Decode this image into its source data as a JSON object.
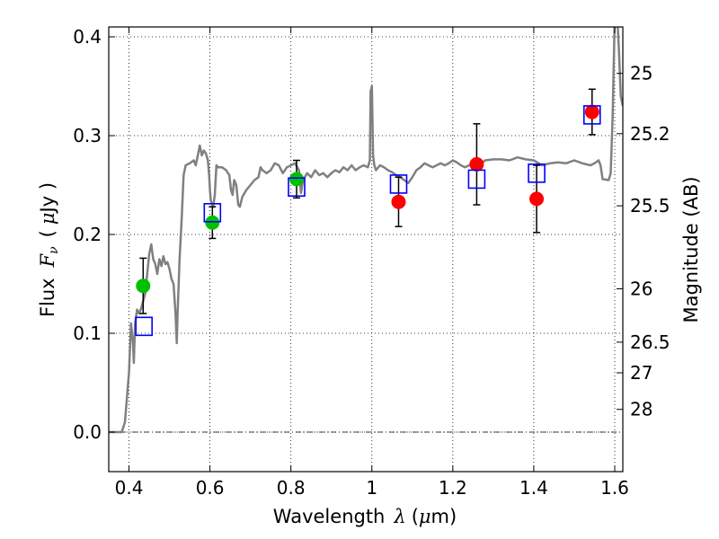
{
  "chart_data": {
    "type": "scatter",
    "title": "",
    "xlabel": {
      "prefix": "Wavelength",
      "symbol": "λ",
      "unit_open": "(",
      "unit_mu": "μ",
      "unit_rest": "m)"
    },
    "ylabel": {
      "prefix": "Flux",
      "symbol": "F",
      "sub": "ν",
      "unit_open": "(",
      "unit_mu": "μ",
      "unit_rest": "Jy )"
    },
    "y2label": "Magnitude (AB)",
    "xlim": [
      0.35,
      1.62
    ],
    "ylim": [
      -0.04,
      0.41
    ],
    "grid": true,
    "x_ticks": [
      0.4,
      0.6,
      0.8,
      1.0,
      1.2,
      1.4,
      1.6
    ],
    "x_tick_labels": [
      "0.4",
      "0.6",
      "0.8",
      "1",
      "1.2",
      "1.4",
      "1.6"
    ],
    "y_ticks": [
      0.0,
      0.1,
      0.2,
      0.3,
      0.4
    ],
    "y_tick_labels": [
      "0.0",
      "0.1",
      "0.2",
      "0.3",
      "0.4"
    ],
    "y2_ticks": [
      {
        "label": "25",
        "flux": 0.363
      },
      {
        "label": "25.2",
        "flux": 0.302
      },
      {
        "label": "25.5",
        "flux": 0.229
      },
      {
        "label": "26",
        "flux": 0.145
      },
      {
        "label": "26.5",
        "flux": 0.091
      },
      {
        "label": "27",
        "flux": 0.06
      },
      {
        "label": "28",
        "flux": 0.023
      }
    ],
    "series": [
      {
        "marker": "circle",
        "color": "#00c000",
        "points": [
          {
            "x": 0.435,
            "y": 0.148,
            "err": 0.028
          },
          {
            "x": 0.606,
            "y": 0.212,
            "err": 0.016
          },
          {
            "x": 0.814,
            "y": 0.256,
            "err": 0.019
          }
        ]
      },
      {
        "marker": "circle",
        "color": "#ff0000",
        "points": [
          {
            "x": 1.066,
            "y": 0.233,
            "err": 0.025
          },
          {
            "x": 1.259,
            "y": 0.271,
            "err": 0.041
          },
          {
            "x": 1.407,
            "y": 0.236,
            "err": 0.034
          },
          {
            "x": 1.544,
            "y": 0.324,
            "err": 0.023
          }
        ]
      },
      {
        "marker": "open-square",
        "color": "#0000ff",
        "points": [
          {
            "x": 0.437,
            "y": 0.107
          },
          {
            "x": 0.606,
            "y": 0.222
          },
          {
            "x": 0.814,
            "y": 0.248
          },
          {
            "x": 1.066,
            "y": 0.251
          },
          {
            "x": 1.259,
            "y": 0.256
          },
          {
            "x": 1.407,
            "y": 0.262
          },
          {
            "x": 1.544,
            "y": 0.321
          }
        ]
      }
    ],
    "model_spectrum": {
      "color": "#808080",
      "points": [
        [
          0.35,
          0.0
        ],
        [
          0.382,
          0.0
        ],
        [
          0.39,
          0.01
        ],
        [
          0.4,
          0.06
        ],
        [
          0.405,
          0.11
        ],
        [
          0.41,
          0.09
        ],
        [
          0.412,
          0.07
        ],
        [
          0.415,
          0.11
        ],
        [
          0.42,
          0.124
        ],
        [
          0.425,
          0.12
        ],
        [
          0.43,
          0.125
        ],
        [
          0.44,
          0.14
        ],
        [
          0.445,
          0.16
        ],
        [
          0.45,
          0.18
        ],
        [
          0.455,
          0.19
        ],
        [
          0.46,
          0.175
        ],
        [
          0.465,
          0.17
        ],
        [
          0.47,
          0.16
        ],
        [
          0.475,
          0.175
        ],
        [
          0.48,
          0.168
        ],
        [
          0.485,
          0.178
        ],
        [
          0.49,
          0.17
        ],
        [
          0.495,
          0.172
        ],
        [
          0.5,
          0.165
        ],
        [
          0.505,
          0.155
        ],
        [
          0.51,
          0.15
        ],
        [
          0.515,
          0.12
        ],
        [
          0.518,
          0.09
        ],
        [
          0.52,
          0.12
        ],
        [
          0.525,
          0.175
        ],
        [
          0.53,
          0.215
        ],
        [
          0.535,
          0.26
        ],
        [
          0.54,
          0.27
        ],
        [
          0.55,
          0.272
        ],
        [
          0.56,
          0.275
        ],
        [
          0.565,
          0.27
        ],
        [
          0.57,
          0.28
        ],
        [
          0.575,
          0.29
        ],
        [
          0.58,
          0.28
        ],
        [
          0.585,
          0.285
        ],
        [
          0.59,
          0.282
        ],
        [
          0.595,
          0.275
        ],
        [
          0.598,
          0.26
        ],
        [
          0.6,
          0.245
        ],
        [
          0.602,
          0.235
        ],
        [
          0.605,
          0.23
        ],
        [
          0.608,
          0.228
        ],
        [
          0.612,
          0.24
        ],
        [
          0.616,
          0.27
        ],
        [
          0.62,
          0.268
        ],
        [
          0.63,
          0.268
        ],
        [
          0.64,
          0.265
        ],
        [
          0.648,
          0.26
        ],
        [
          0.652,
          0.245
        ],
        [
          0.656,
          0.24
        ],
        [
          0.66,
          0.255
        ],
        [
          0.665,
          0.25
        ],
        [
          0.67,
          0.23
        ],
        [
          0.674,
          0.228
        ],
        [
          0.68,
          0.238
        ],
        [
          0.69,
          0.245
        ],
        [
          0.7,
          0.25
        ],
        [
          0.71,
          0.255
        ],
        [
          0.72,
          0.258
        ],
        [
          0.725,
          0.268
        ],
        [
          0.73,
          0.265
        ],
        [
          0.74,
          0.262
        ],
        [
          0.75,
          0.265
        ],
        [
          0.76,
          0.272
        ],
        [
          0.77,
          0.27
        ],
        [
          0.78,
          0.262
        ],
        [
          0.79,
          0.268
        ],
        [
          0.8,
          0.27
        ],
        [
          0.81,
          0.272
        ],
        [
          0.82,
          0.265
        ],
        [
          0.825,
          0.242
        ],
        [
          0.83,
          0.255
        ],
        [
          0.84,
          0.262
        ],
        [
          0.85,
          0.258
        ],
        [
          0.86,
          0.265
        ],
        [
          0.87,
          0.26
        ],
        [
          0.88,
          0.262
        ],
        [
          0.89,
          0.258
        ],
        [
          0.9,
          0.262
        ],
        [
          0.91,
          0.265
        ],
        [
          0.92,
          0.263
        ],
        [
          0.93,
          0.268
        ],
        [
          0.94,
          0.265
        ],
        [
          0.95,
          0.27
        ],
        [
          0.96,
          0.265
        ],
        [
          0.97,
          0.268
        ],
        [
          0.98,
          0.27
        ],
        [
          0.99,
          0.268
        ],
        [
          0.995,
          0.275
        ],
        [
          0.997,
          0.345
        ],
        [
          1.0,
          0.35
        ],
        [
          1.003,
          0.28
        ],
        [
          1.006,
          0.27
        ],
        [
          1.01,
          0.265
        ],
        [
          1.02,
          0.27
        ],
        [
          1.03,
          0.268
        ],
        [
          1.04,
          0.265
        ],
        [
          1.05,
          0.263
        ],
        [
          1.06,
          0.26
        ],
        [
          1.07,
          0.258
        ],
        [
          1.08,
          0.255
        ],
        [
          1.09,
          0.252
        ],
        [
          1.1,
          0.258
        ],
        [
          1.11,
          0.265
        ],
        [
          1.12,
          0.268
        ],
        [
          1.13,
          0.272
        ],
        [
          1.14,
          0.27
        ],
        [
          1.15,
          0.268
        ],
        [
          1.16,
          0.27
        ],
        [
          1.17,
          0.272
        ],
        [
          1.18,
          0.27
        ],
        [
          1.19,
          0.272
        ],
        [
          1.2,
          0.275
        ],
        [
          1.21,
          0.273
        ],
        [
          1.22,
          0.27
        ],
        [
          1.23,
          0.268
        ],
        [
          1.24,
          0.27
        ],
        [
          1.25,
          0.272
        ],
        [
          1.26,
          0.27
        ],
        [
          1.27,
          0.272
        ],
        [
          1.28,
          0.275
        ],
        [
          1.3,
          0.276
        ],
        [
          1.32,
          0.276
        ],
        [
          1.34,
          0.275
        ],
        [
          1.36,
          0.278
        ],
        [
          1.38,
          0.276
        ],
        [
          1.4,
          0.275
        ],
        [
          1.42,
          0.27
        ],
        [
          1.44,
          0.272
        ],
        [
          1.46,
          0.273
        ],
        [
          1.48,
          0.272
        ],
        [
          1.5,
          0.275
        ],
        [
          1.52,
          0.272
        ],
        [
          1.54,
          0.27
        ],
        [
          1.55,
          0.272
        ],
        [
          1.56,
          0.275
        ],
        [
          1.565,
          0.27
        ],
        [
          1.57,
          0.256
        ],
        [
          1.585,
          0.255
        ],
        [
          1.59,
          0.262
        ],
        [
          1.595,
          0.32
        ],
        [
          1.6,
          0.42
        ],
        [
          1.605,
          0.43
        ],
        [
          1.61,
          0.39
        ],
        [
          1.615,
          0.34
        ],
        [
          1.62,
          0.33
        ]
      ]
    }
  }
}
